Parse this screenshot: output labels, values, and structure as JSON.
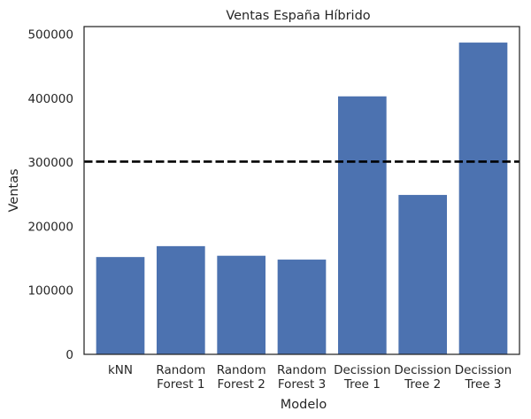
{
  "chart_data": {
    "type": "bar",
    "title": "Ventas España Híbrido",
    "xlabel": "Modelo",
    "ylabel": "Ventas",
    "categories": [
      [
        "kNN"
      ],
      [
        "Random",
        "Forest 1"
      ],
      [
        "Random",
        "Forest 2"
      ],
      [
        "Random",
        "Forest 3"
      ],
      [
        "Decission",
        "Tree 1"
      ],
      [
        "Decission",
        "Tree 2"
      ],
      [
        "Decission",
        "Tree 3"
      ]
    ],
    "values": [
      152000,
      169000,
      154000,
      148000,
      403000,
      249000,
      487000
    ],
    "ylim": [
      0,
      512000
    ],
    "yticks": [
      0,
      100000,
      200000,
      300000,
      400000,
      500000
    ],
    "reference_line": {
      "value": 301000,
      "style": "dashed",
      "color": "#000000"
    },
    "bar_color": "#4c72b0",
    "grid": false
  }
}
